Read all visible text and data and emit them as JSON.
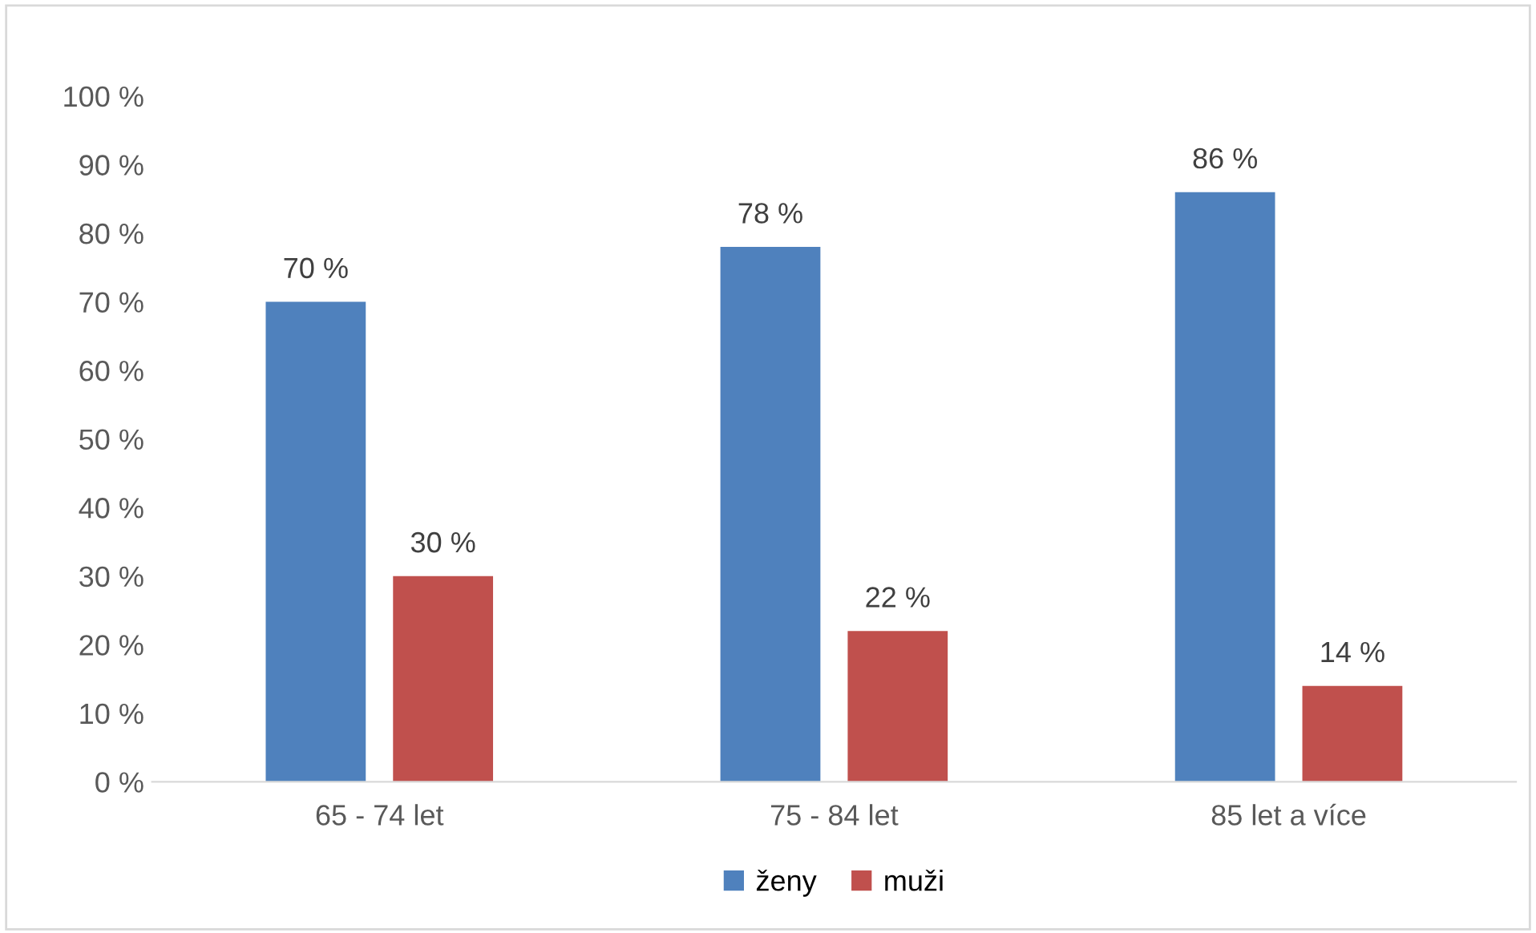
{
  "chart_data": {
    "type": "bar",
    "categories": [
      "65 - 74 let",
      "75 - 84 let",
      "85 let a více"
    ],
    "series": [
      {
        "name": "ženy",
        "color": "#4f81bd",
        "values": [
          70,
          78,
          86
        ],
        "value_labels": [
          "70 %",
          "78 %",
          "86 %"
        ]
      },
      {
        "name": "muži",
        "color": "#c0504d",
        "values": [
          30,
          22,
          14
        ],
        "value_labels": [
          "30 %",
          "22 %",
          "14 %"
        ]
      }
    ],
    "ylim": [
      0,
      100
    ],
    "yticks": [
      {
        "value": 0,
        "label": "0 %"
      },
      {
        "value": 10,
        "label": "10 %"
      },
      {
        "value": 20,
        "label": "20 %"
      },
      {
        "value": 30,
        "label": "30 %"
      },
      {
        "value": 40,
        "label": "40 %"
      },
      {
        "value": 50,
        "label": "50 %"
      },
      {
        "value": 60,
        "label": "60 %"
      },
      {
        "value": 70,
        "label": "70 %"
      },
      {
        "value": 80,
        "label": "80 %"
      },
      {
        "value": 90,
        "label": "90 %"
      },
      {
        "value": 100,
        "label": "100 %"
      }
    ],
    "grid": false,
    "legend": "bottom"
  }
}
